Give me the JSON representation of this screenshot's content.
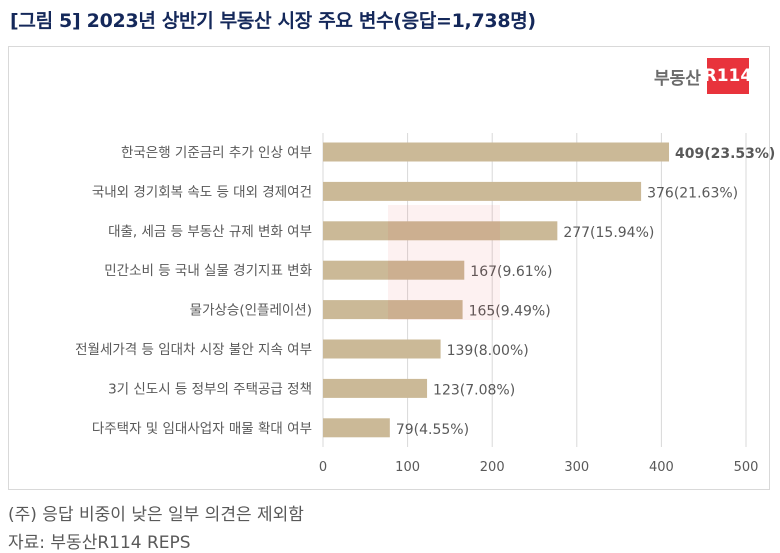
{
  "title": "[그림 5] 2023년 상반기 부동산 시장 주요 변수(응답=1,738명)",
  "logo": {
    "text": "부동산",
    "box": "R114"
  },
  "notes": {
    "note": "(주) 응답 비중이 낮은 일부 의견은 제외함",
    "source": "자료: 부동산R114 REPS"
  },
  "colors": {
    "bar": "#cbb997",
    "grid": "#d9d9d9",
    "label": "#595959",
    "title": "#14285a",
    "logo_red": "#e8333c"
  },
  "chart_data": {
    "type": "bar",
    "orientation": "horizontal",
    "categories": [
      "한국은행 기준금리 추가 인상 여부",
      "국내외 경기회복 속도 등 대외 경제여건",
      "대출, 세금 등 부동산 규제 변화 여부",
      "민간소비 등 국내 실물 경기지표 변화",
      "물가상승(인플레이션)",
      "전월세가격 등 임대차 시장 불안 지속 여부",
      "3기 신도시 등 정부의 주택공급 정책",
      "다주택자 및 임대사업자 매물 확대 여부"
    ],
    "values": [
      409,
      376,
      277,
      167,
      165,
      139,
      123,
      79
    ],
    "data_labels": [
      "409(23.53%)",
      "376(21.63%)",
      "277(15.94%)",
      "167(9.61%)",
      "165(9.49%)",
      "139(8.00%)",
      "123(7.08%)",
      "79(4.55%)"
    ],
    "xlim": [
      0,
      500
    ],
    "xticks": [
      "0",
      "100",
      "200",
      "300",
      "400",
      "500"
    ],
    "grid": true,
    "legend": "none"
  }
}
